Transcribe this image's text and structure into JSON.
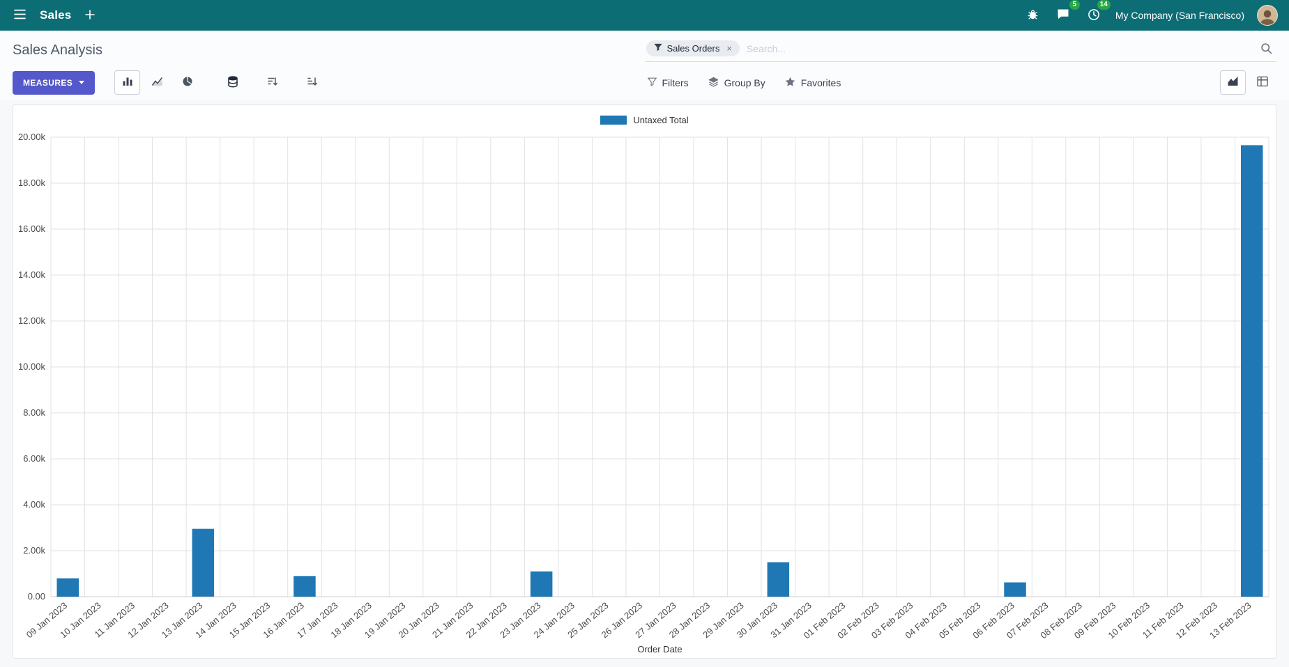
{
  "navbar": {
    "app_name": "Sales",
    "plus_label": "+",
    "messages_badge": "5",
    "activities_badge": "14",
    "company": "My Company (San Francisco)"
  },
  "control_panel": {
    "title": "Sales Analysis",
    "search": {
      "facet_label": "Sales Orders",
      "facet_remove": "×",
      "placeholder": "Search..."
    },
    "toolbar": {
      "measures_label": "MEASURES",
      "filters_label": "Filters",
      "group_by_label": "Group By",
      "favorites_label": "Favorites"
    }
  },
  "colors": {
    "navbar_bg": "#0d6d75",
    "accent": "#5558ca",
    "badge_green": "#28a745",
    "bar_color": "#1f77b4"
  },
  "chart_data": {
    "type": "bar",
    "title": "",
    "legend": [
      "Untaxed Total"
    ],
    "xlabel": "Order Date",
    "ylabel": "",
    "ylim": [
      0,
      20000
    ],
    "y_tick_step": 2000,
    "grid": true,
    "legend_position": "top-center",
    "categories": [
      "09 Jan 2023",
      "10 Jan 2023",
      "11 Jan 2023",
      "12 Jan 2023",
      "13 Jan 2023",
      "14 Jan 2023",
      "15 Jan 2023",
      "16 Jan 2023",
      "17 Jan 2023",
      "18 Jan 2023",
      "19 Jan 2023",
      "20 Jan 2023",
      "21 Jan 2023",
      "22 Jan 2023",
      "23 Jan 2023",
      "24 Jan 2023",
      "25 Jan 2023",
      "26 Jan 2023",
      "27 Jan 2023",
      "28 Jan 2023",
      "29 Jan 2023",
      "30 Jan 2023",
      "31 Jan 2023",
      "01 Feb 2023",
      "02 Feb 2023",
      "03 Feb 2023",
      "04 Feb 2023",
      "05 Feb 2023",
      "06 Feb 2023",
      "07 Feb 2023",
      "08 Feb 2023",
      "09 Feb 2023",
      "10 Feb 2023",
      "11 Feb 2023",
      "12 Feb 2023",
      "13 Feb 2023"
    ],
    "series": [
      {
        "name": "Untaxed Total",
        "values": [
          800,
          0,
          0,
          0,
          2950,
          0,
          0,
          900,
          0,
          0,
          0,
          0,
          0,
          0,
          1100,
          0,
          0,
          0,
          0,
          0,
          0,
          1500,
          0,
          0,
          0,
          0,
          0,
          0,
          620,
          0,
          0,
          0,
          0,
          0,
          0,
          19650
        ]
      }
    ]
  }
}
